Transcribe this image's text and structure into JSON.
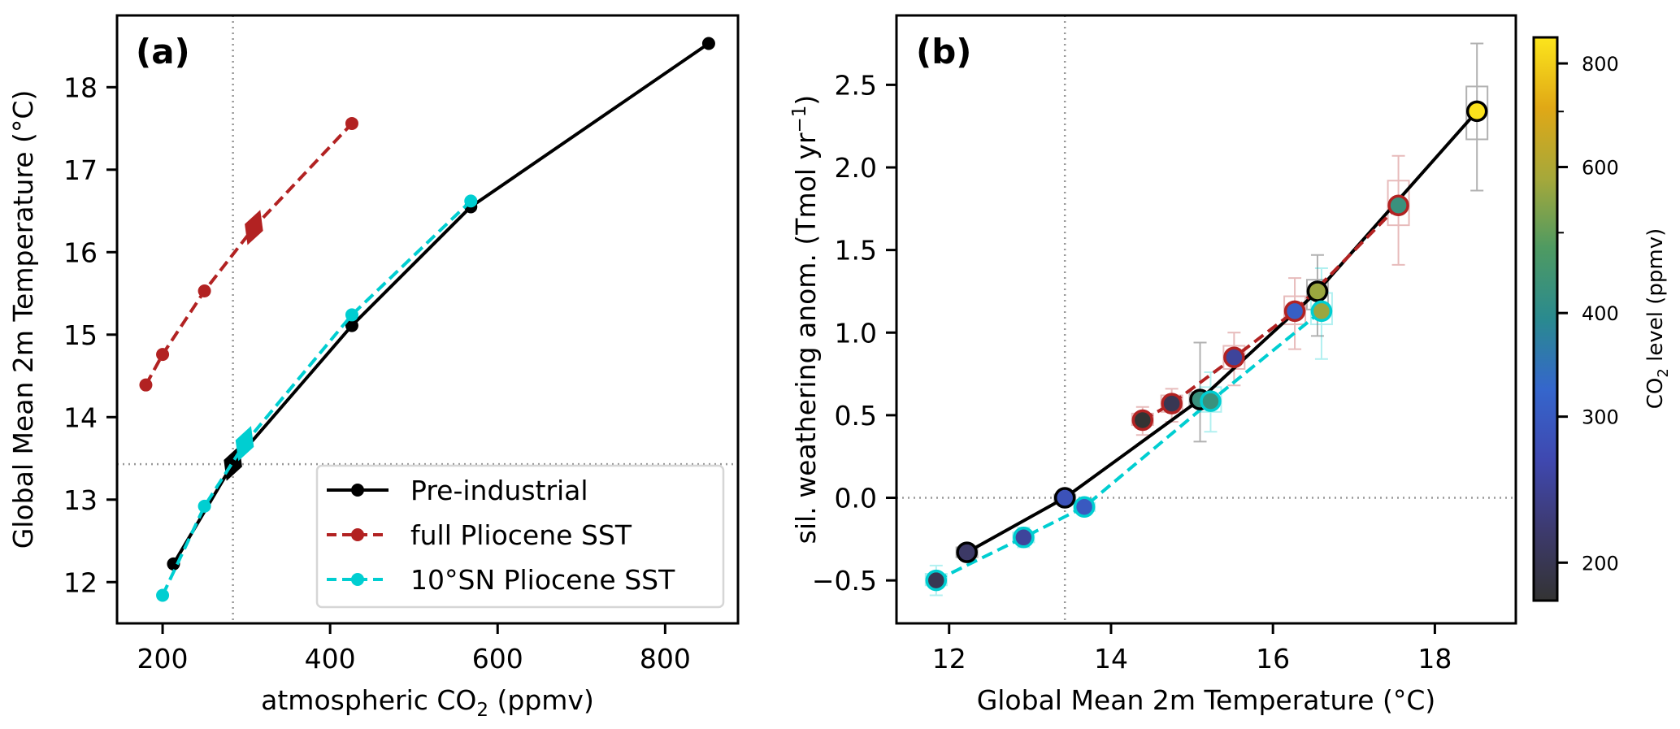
{
  "chart_data": [
    {
      "panel": "(a)",
      "type": "line",
      "title": "",
      "xlabel": "atmospheric CO2 (ppmv)",
      "xlabel_main": "atmospheric CO",
      "xlabel_sub": "2",
      "xlabel_tail": " (ppmv)",
      "ylabel": "Global Mean 2m Temperature (°C)",
      "xlim": [
        145.6,
        887
      ],
      "ylim": [
        11.5,
        18.87
      ],
      "xticks": [
        200,
        400,
        600,
        800
      ],
      "yticks": [
        12,
        13,
        14,
        15,
        16,
        17,
        18
      ],
      "grid": false,
      "reference_lines": {
        "vertical_x": 284,
        "horizontal_y": 13.43
      },
      "legend": {
        "placement": "lower-right"
      },
      "series": [
        {
          "name": "Pre-industrial",
          "color": "#000000",
          "linestyle": "solid",
          "x": [
            213,
            284,
            426,
            568,
            852
          ],
          "y": [
            12.22,
            13.44,
            15.11,
            16.55,
            18.53
          ],
          "diamond": {
            "x": 284,
            "y": 13.44
          }
        },
        {
          "name": "full Pliocene SST",
          "color": "#b22222",
          "linestyle": "dashed",
          "x": [
            180,
            200,
            250,
            309,
            426
          ],
          "y": [
            14.39,
            14.76,
            15.53,
            16.3,
            17.56
          ],
          "diamond": {
            "x": 309,
            "y": 16.3
          }
        },
        {
          "name": "10°SN Pliocene SST",
          "color": "#00ced1",
          "linestyle": "dashed",
          "x": [
            200,
            250,
            298,
            426,
            568
          ],
          "y": [
            11.84,
            12.92,
            13.68,
            15.24,
            16.62
          ],
          "diamond": {
            "x": 298,
            "y": 13.68
          }
        }
      ]
    },
    {
      "panel": "(b)",
      "type": "scatter",
      "title": "",
      "xlabel": "Global Mean 2m Temperature (°C)",
      "ylabel": "sil. weathering anom. (Tmol yr⁻¹)",
      "ylabel_main": "sil. weathering anom. (Tmol yr",
      "ylabel_sup": "−1",
      "ylabel_tail": ")",
      "xlim": [
        11.35,
        19.0
      ],
      "ylim": [
        -0.76,
        2.92
      ],
      "xticks": [
        12,
        14,
        16,
        18
      ],
      "yticks": [
        -0.5,
        0.0,
        0.5,
        1.0,
        1.5,
        2.0,
        2.5
      ],
      "ytick_labels": [
        "−0.5",
        "0.0",
        "0.5",
        "1.0",
        "1.5",
        "2.0",
        "2.5"
      ],
      "grid": false,
      "reference_lines": {
        "vertical_x": 13.43,
        "horizontal_y": 0.0
      },
      "colorbar": {
        "label": "CO2 level (ppmv)",
        "label_main": "CO",
        "label_sub": "2",
        "label_tail": " level (ppmv)",
        "scale": "log",
        "range": [
          180,
          860
        ],
        "ticks": [
          200,
          300,
          400,
          600,
          800
        ],
        "minor_ticks": [
          500,
          700
        ],
        "colormap_stops": [
          "#333333",
          "#3d3a6e",
          "#3f48b0",
          "#3566cc",
          "#2a8a8f",
          "#4e9a62",
          "#a6a83a",
          "#e0a816",
          "#fce51c"
        ]
      },
      "series": [
        {
          "name": "Pre-industrial",
          "edgecolor": "#000000",
          "linestyle": "solid",
          "x": [
            12.22,
            13.43,
            15.1,
            16.55,
            18.52
          ],
          "y": [
            -0.33,
            0.0,
            0.595,
            1.25,
            2.34
          ],
          "co2": [
            213,
            284,
            426,
            568,
            852
          ],
          "box": [
            [
              -0.36,
              -0.3
            ],
            [
              -0.02,
              0.02
            ],
            [
              0.55,
              0.64
            ],
            [
              1.14,
              1.32
            ],
            [
              2.17,
              2.49
            ]
          ],
          "whisker": [
            [
              -0.38,
              -0.29
            ],
            [
              -0.03,
              0.03
            ],
            [
              0.34,
              0.94
            ],
            [
              0.98,
              1.47
            ],
            [
              1.86,
              2.75
            ]
          ]
        },
        {
          "name": "full Pliocene SST",
          "edgecolor": "#b22222",
          "linestyle": "dashed",
          "x": [
            14.39,
            14.75,
            15.52,
            16.27,
            17.55
          ],
          "y": [
            0.47,
            0.57,
            0.85,
            1.13,
            1.77
          ],
          "co2": [
            180,
            200,
            250,
            309,
            426
          ],
          "box": [
            [
              0.44,
              0.51
            ],
            [
              0.52,
              0.62
            ],
            [
              0.78,
              0.92
            ],
            [
              1.05,
              1.22
            ],
            [
              1.65,
              1.92
            ]
          ],
          "whisker": [
            [
              0.38,
              0.55
            ],
            [
              0.46,
              0.66
            ],
            [
              0.68,
              1.0
            ],
            [
              0.9,
              1.33
            ],
            [
              1.41,
              2.07
            ]
          ]
        },
        {
          "name": "10°SN Pliocene SST",
          "edgecolor": "#00ced1",
          "linestyle": "dashed",
          "x": [
            11.84,
            12.92,
            13.67,
            15.23,
            16.6
          ],
          "y": [
            -0.5,
            -0.24,
            -0.055,
            0.585,
            1.13
          ],
          "co2": [
            200,
            250,
            298,
            426,
            568
          ],
          "box": [
            [
              -0.53,
              -0.46
            ],
            [
              -0.27,
              -0.21
            ],
            [
              -0.08,
              -0.03
            ],
            [
              0.52,
              0.67
            ],
            [
              1.05,
              1.24
            ]
          ],
          "whisker": [
            [
              -0.59,
              -0.41
            ],
            [
              -0.3,
              -0.18
            ],
            [
              -0.1,
              -0.01
            ],
            [
              0.4,
              0.76
            ],
            [
              0.84,
              1.39
            ]
          ]
        }
      ]
    }
  ]
}
